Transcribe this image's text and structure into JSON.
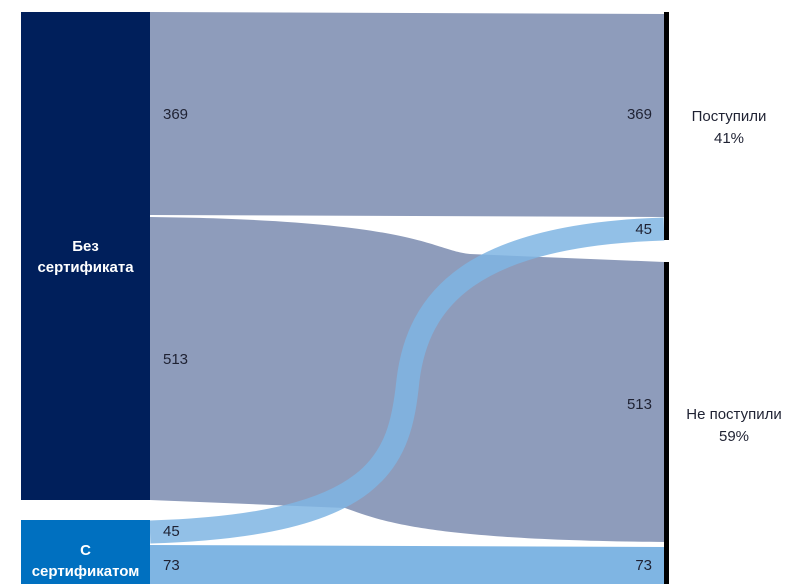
{
  "colors": {
    "source_dark": "#001f5b",
    "source_light": "#0070c0",
    "flow_gray": "#8e9cbb",
    "flow_blue": "#7fb5e3",
    "flow_blue_dark": "#4f86c6",
    "target_bar": "#000000"
  },
  "sources": [
    {
      "id": "no_cert",
      "label": "Без\nсертификата"
    },
    {
      "id": "with_cert",
      "label": "С\nсертификатом"
    }
  ],
  "targets": [
    {
      "id": "admitted",
      "label": "Поступили\n41%"
    },
    {
      "id": "not_admitted",
      "label": "Не поступили\n59%"
    }
  ],
  "flows": [
    {
      "source": "no_cert",
      "target": "admitted",
      "value": 369,
      "label_left": "369",
      "label_right": "369"
    },
    {
      "source": "no_cert",
      "target": "not_admitted",
      "value": 513,
      "label_left": "513",
      "label_right": "513"
    },
    {
      "source": "with_cert",
      "target": "admitted",
      "value": 45,
      "label_left": "45",
      "label_right": "45"
    },
    {
      "source": "with_cert",
      "target": "not_admitted",
      "value": 73,
      "label_left": "73",
      "label_right": "73"
    }
  ]
}
